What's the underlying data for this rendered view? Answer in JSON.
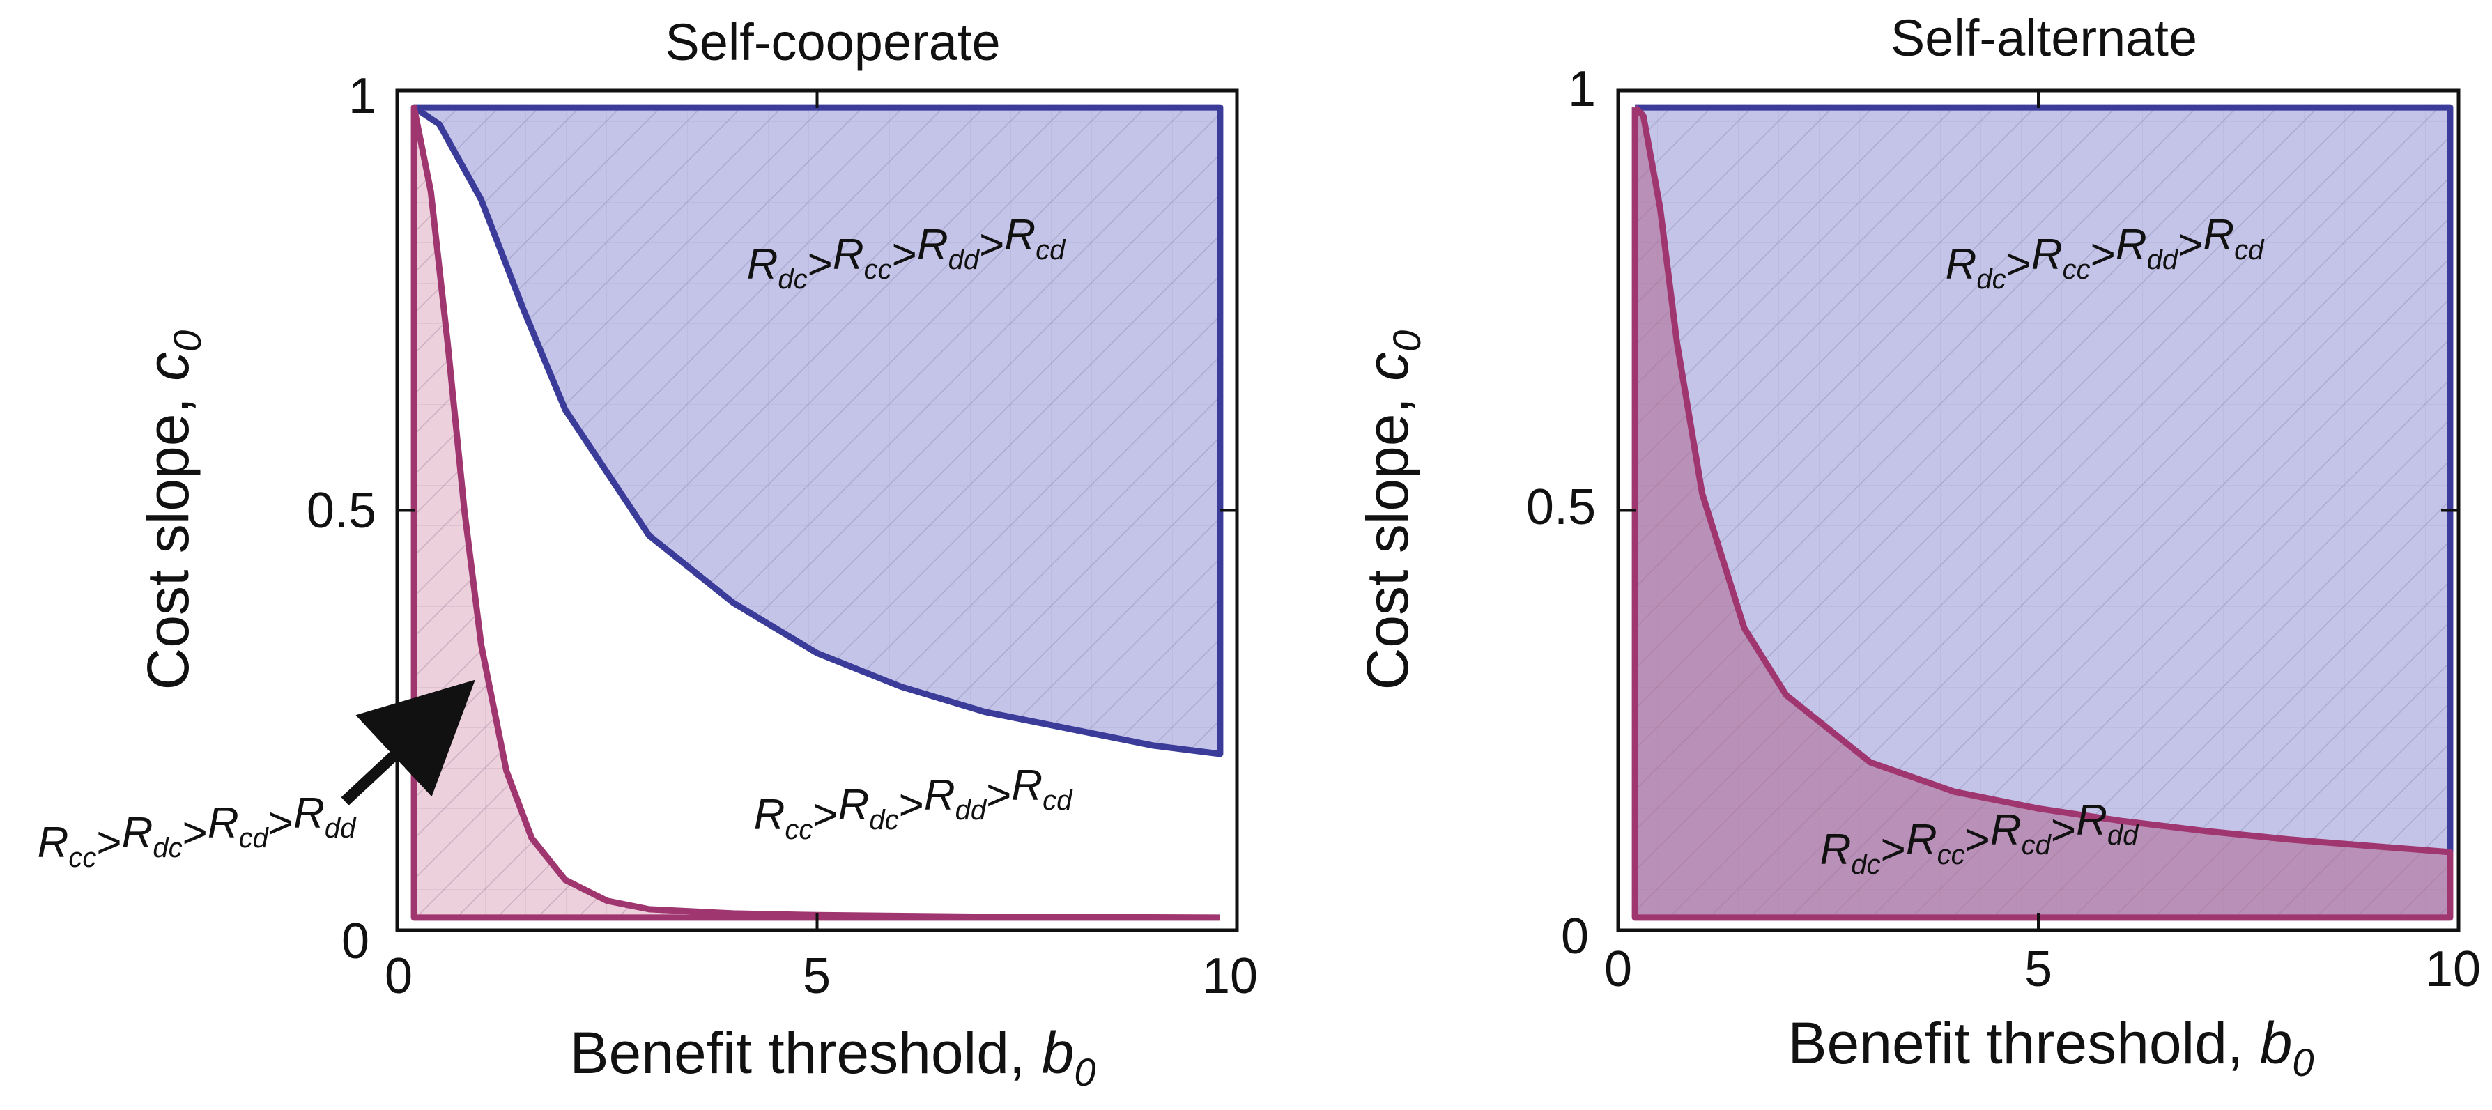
{
  "colors": {
    "blue": "#3b3b9a",
    "blue_fill": "#c4c3e8",
    "magenta": "#a0366f",
    "magenta_fill": "#ecd0dc",
    "overlap_fill": "#b990b8"
  },
  "chart_data": [
    {
      "type": "area",
      "title": "Self-cooperate",
      "xlabel": "Benefit threshold, b0",
      "ylabel": "Cost slope, c0",
      "xlim": [
        0,
        10
      ],
      "ylim": [
        0,
        1
      ],
      "xticks": [
        "0",
        "5",
        "10"
      ],
      "yticks": [
        "0",
        "0.5",
        "1"
      ],
      "grid": false,
      "series": [
        {
          "boundary": "blue",
          "label_parts": [
            "R",
            "dc",
            "R",
            "cc",
            "R",
            "dd",
            "R",
            "cd"
          ],
          "x": [
            0.2,
            0.5,
            1.0,
            1.5,
            2.0,
            3.0,
            4.0,
            5.0,
            6.0,
            7.0,
            8.0,
            9.0,
            9.8
          ],
          "y": [
            0.98,
            0.96,
            0.87,
            0.74,
            0.62,
            0.47,
            0.39,
            0.33,
            0.29,
            0.26,
            0.24,
            0.22,
            0.21
          ]
        },
        {
          "boundary": "magenta",
          "label_parts": [
            "R",
            "cc",
            "R",
            "dc",
            "R",
            "cd",
            "R",
            "dd"
          ],
          "x": [
            0.2,
            0.4,
            0.6,
            0.8,
            1.0,
            1.3,
            1.6,
            2.0,
            2.5,
            3.0,
            4.0,
            5.0,
            7.0,
            9.8
          ],
          "y": [
            0.98,
            0.88,
            0.7,
            0.5,
            0.34,
            0.19,
            0.11,
            0.06,
            0.035,
            0.025,
            0.02,
            0.018,
            0.016,
            0.015
          ]
        }
      ],
      "unshaded_label_parts": [
        "R",
        "cc",
        "R",
        "dc",
        "R",
        "dd",
        "R",
        "cd"
      ]
    },
    {
      "type": "area",
      "title": "Self-alternate",
      "xlabel": "Benefit threshold, b0",
      "ylabel": "Cost slope, c0",
      "xlim": [
        0,
        10
      ],
      "ylim": [
        0,
        1
      ],
      "xticks": [
        "0",
        "5",
        "10"
      ],
      "yticks": [
        "0",
        "0.5",
        "1"
      ],
      "grid": false,
      "series": [
        {
          "boundary": "blue",
          "label_parts": [
            "R",
            "dc",
            "R",
            "cc",
            "R",
            "dd",
            "R",
            "cd"
          ]
        },
        {
          "boundary": "magenta",
          "label_parts": [
            "R",
            "dc",
            "R",
            "cc",
            "R",
            "cd",
            "R",
            "dd"
          ],
          "x": [
            0.2,
            0.3,
            0.5,
            0.7,
            1.0,
            1.5,
            2.0,
            3.0,
            4.0,
            5.0,
            6.0,
            7.0,
            8.0,
            9.0,
            9.9
          ],
          "y": [
            0.98,
            0.97,
            0.86,
            0.7,
            0.52,
            0.36,
            0.28,
            0.2,
            0.165,
            0.145,
            0.13,
            0.118,
            0.108,
            0.1,
            0.093
          ]
        }
      ]
    }
  ]
}
